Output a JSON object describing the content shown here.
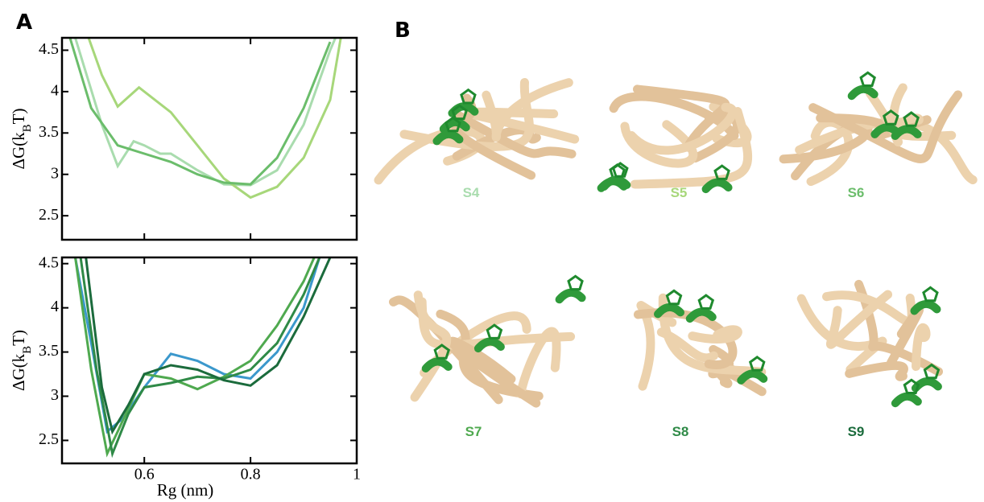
{
  "panels": [
    "A",
    "B"
  ],
  "chart_data": [
    {
      "type": "line",
      "ylabel": [
        "ΔG(k",
        "B",
        "T)"
      ],
      "xlim": [
        0.445,
        1
      ],
      "xticks": [
        0.6,
        0.8,
        1
      ],
      "show_xtick_labels": false,
      "ylim": [
        2.21,
        4.65
      ],
      "yticks": [
        2.5,
        3,
        3.5,
        4,
        4.5
      ],
      "series": [
        {
          "name": "S4",
          "color": "#a9dcae",
          "x": [
            0.47,
            0.52,
            0.55,
            0.58,
            0.6,
            0.63,
            0.65,
            0.7,
            0.75,
            0.8,
            0.85,
            0.9,
            0.95,
            0.96
          ],
          "values": [
            4.65,
            3.6,
            3.1,
            3.4,
            3.35,
            3.25,
            3.25,
            3.05,
            2.88,
            2.87,
            3.05,
            3.6,
            4.5,
            4.65
          ]
        },
        {
          "name": "S5",
          "color": "#a7d77a",
          "x": [
            0.495,
            0.52,
            0.55,
            0.59,
            0.65,
            0.7,
            0.75,
            0.8,
            0.85,
            0.9,
            0.95,
            0.97
          ],
          "values": [
            4.65,
            4.2,
            3.82,
            4.05,
            3.75,
            3.35,
            2.95,
            2.72,
            2.85,
            3.2,
            3.9,
            4.65
          ]
        },
        {
          "name": "S6",
          "color": "#6bbd6b",
          "x": [
            0.46,
            0.5,
            0.55,
            0.6,
            0.65,
            0.7,
            0.75,
            0.8,
            0.85,
            0.9,
            0.95
          ],
          "values": [
            4.65,
            3.8,
            3.35,
            3.25,
            3.15,
            3.0,
            2.9,
            2.88,
            3.2,
            3.8,
            4.6
          ]
        }
      ]
    },
    {
      "type": "line",
      "ylabel": [
        "ΔG(k",
        "B",
        "T)"
      ],
      "xlabel": "Rg (nm)",
      "xlim": [
        0.445,
        1
      ],
      "xticks": [
        0.6,
        0.8,
        1
      ],
      "show_xtick_labels": true,
      "ylim": [
        2.24,
        4.57
      ],
      "yticks": [
        2.5,
        3,
        3.5,
        4,
        4.5
      ],
      "series": [
        {
          "color": "#3b98cc",
          "x": [
            0.47,
            0.5,
            0.53,
            0.56,
            0.6,
            0.65,
            0.7,
            0.75,
            0.8,
            0.85,
            0.9,
            0.93
          ],
          "values": [
            4.57,
            3.6,
            2.6,
            2.75,
            3.1,
            3.48,
            3.4,
            3.25,
            3.2,
            3.5,
            4.0,
            4.57
          ]
        },
        {
          "name": "S7",
          "color": "#4fa94f",
          "x": [
            0.47,
            0.5,
            0.53,
            0.55,
            0.6,
            0.65,
            0.7,
            0.75,
            0.8,
            0.85,
            0.9,
            0.92
          ],
          "values": [
            4.57,
            3.3,
            2.35,
            2.6,
            3.25,
            3.2,
            3.08,
            3.22,
            3.4,
            3.8,
            4.3,
            4.57
          ]
        },
        {
          "name": "S8",
          "color": "#2f8a47",
          "x": [
            0.48,
            0.51,
            0.54,
            0.57,
            0.6,
            0.65,
            0.7,
            0.75,
            0.8,
            0.85,
            0.9,
            0.93
          ],
          "values": [
            4.57,
            3.3,
            2.35,
            2.8,
            3.1,
            3.15,
            3.22,
            3.2,
            3.3,
            3.6,
            4.15,
            4.57
          ]
        },
        {
          "name": "S9",
          "color": "#1b6b3c",
          "x": [
            0.49,
            0.52,
            0.54,
            0.57,
            0.6,
            0.65,
            0.7,
            0.75,
            0.8,
            0.85,
            0.9,
            0.95
          ],
          "values": [
            4.57,
            3.1,
            2.6,
            2.9,
            3.25,
            3.35,
            3.3,
            3.18,
            3.12,
            3.35,
            3.9,
            4.57
          ]
        }
      ]
    }
  ]
}
